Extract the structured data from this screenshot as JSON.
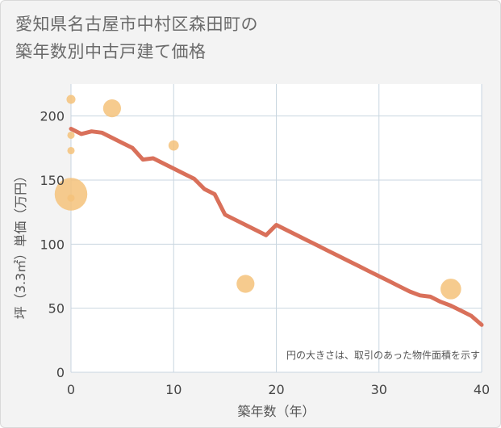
{
  "title_lines": [
    "愛知県名古屋市中村区森田町の",
    "築年数別中古戸建て価格"
  ],
  "colors": {
    "plot_bg": "#ffffff",
    "grid": "#c9d6e0",
    "line": "#d9705a",
    "bubble": "#f5c27a"
  },
  "chart_data": {
    "type": "line",
    "title": "愛知県名古屋市中村区森田町の築年数別中古戸建て価格",
    "xlabel": "築年数（年）",
    "ylabel": "坪（3.3㎡）単価（万円）",
    "xlim": [
      0,
      40
    ],
    "ylim": [
      0,
      225
    ],
    "xticks": [
      0,
      10,
      20,
      30,
      40
    ],
    "yticks": [
      0,
      50,
      100,
      150,
      200
    ],
    "grid": true,
    "note": "円の大きさは、取引のあった物件面積を示す",
    "line_series": {
      "x": [
        0,
        1,
        2,
        3,
        4,
        5,
        6,
        7,
        8,
        9,
        10,
        11,
        12,
        13,
        14,
        15,
        16,
        17,
        18,
        19,
        20,
        21,
        22,
        23,
        24,
        25,
        26,
        27,
        28,
        29,
        30,
        31,
        32,
        33,
        34,
        35,
        36,
        37,
        38,
        39,
        40
      ],
      "y": [
        190,
        186,
        188,
        187,
        183,
        179,
        175,
        166,
        167,
        163,
        159,
        155,
        151,
        143,
        139,
        123,
        119,
        115,
        111,
        107,
        115,
        111,
        107,
        103,
        99,
        95,
        91,
        87,
        83,
        79,
        75,
        71,
        67,
        63,
        60,
        59,
        55,
        52,
        48,
        44,
        37
      ]
    },
    "bubbles": [
      {
        "x": 0,
        "y": 213,
        "size": 3
      },
      {
        "x": 0,
        "y": 185,
        "size": 2
      },
      {
        "x": 0,
        "y": 173,
        "size": 2
      },
      {
        "x": 0,
        "y": 139,
        "size": 40
      },
      {
        "x": 0,
        "y": 136,
        "size": 2
      },
      {
        "x": 4,
        "y": 206,
        "size": 12
      },
      {
        "x": 10,
        "y": 177,
        "size": 4
      },
      {
        "x": 17,
        "y": 69,
        "size": 12
      },
      {
        "x": 37,
        "y": 65,
        "size": 16
      }
    ]
  }
}
